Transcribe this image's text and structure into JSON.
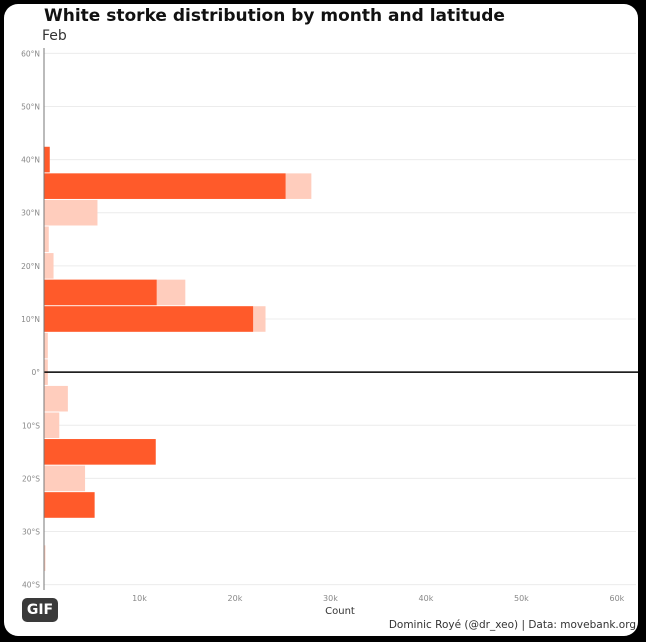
{
  "header": {
    "title": "White storke distribution by month and latitude",
    "subtitle": "Feb"
  },
  "badge": {
    "label": "GIF"
  },
  "caption": "Dominic Royé (@dr_xeo) | Data: movebank.org",
  "colors": {
    "current": "#ff5a2a",
    "cumulative": "#ffcdbd",
    "grid": "#ececec",
    "axis": "#000000",
    "tick_text": "#888888"
  },
  "chart_data": {
    "type": "bar",
    "orientation": "horizontal",
    "xlabel": "Count",
    "ylabel": "",
    "xlim": [
      0,
      62000
    ],
    "ylim": [
      -41,
      61
    ],
    "x_ticks": [
      10000,
      20000,
      30000,
      40000,
      50000,
      60000
    ],
    "x_tick_labels": [
      "10k",
      "20k",
      "30k",
      "40k",
      "50k",
      "60k"
    ],
    "y_ticks": [
      60,
      50,
      40,
      30,
      20,
      10,
      0,
      -10,
      -20,
      -30,
      -40
    ],
    "y_tick_labels": [
      "60°N",
      "50°N",
      "40°N",
      "30°N",
      "20°N",
      "10°N",
      "0°",
      "10°S",
      "20°S",
      "30°S",
      "40°S"
    ],
    "bin_width": 5,
    "grid": true,
    "legend": "none",
    "series": [
      {
        "role": "cumulative",
        "bars": [
          {
            "lat": 40,
            "value": 600
          },
          {
            "lat": 35,
            "value": 28000
          },
          {
            "lat": 30,
            "value": 5600
          },
          {
            "lat": 25,
            "value": 500
          },
          {
            "lat": 20,
            "value": 1000
          },
          {
            "lat": 15,
            "value": 14800
          },
          {
            "lat": 10,
            "value": 23200
          },
          {
            "lat": 5,
            "value": 400
          },
          {
            "lat": 0,
            "value": 400
          },
          {
            "lat": -5,
            "value": 2500
          },
          {
            "lat": -10,
            "value": 1600
          },
          {
            "lat": -15,
            "value": 11700
          },
          {
            "lat": -20,
            "value": 4300
          },
          {
            "lat": -25,
            "value": 5300
          },
          {
            "lat": -35,
            "value": 150
          }
        ]
      },
      {
        "role": "current",
        "bars": [
          {
            "lat": 40,
            "value": 600
          },
          {
            "lat": 35,
            "value": 25300
          },
          {
            "lat": 15,
            "value": 11800
          },
          {
            "lat": 10,
            "value": 21900
          },
          {
            "lat": -15,
            "value": 11700
          },
          {
            "lat": -25,
            "value": 5300
          }
        ]
      }
    ]
  }
}
